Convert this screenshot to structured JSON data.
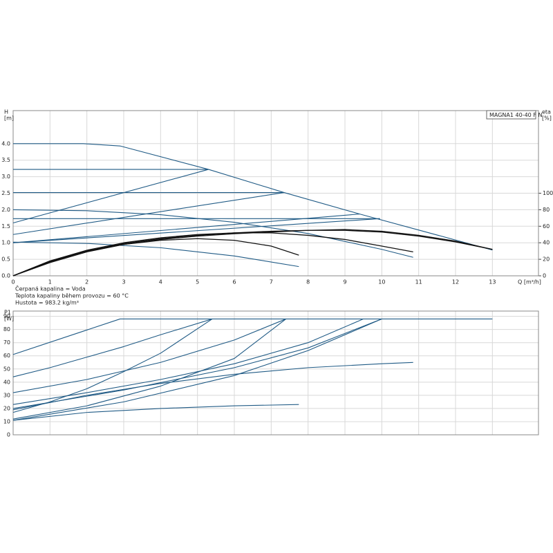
{
  "notes": [
    "Čerpaná kapalina = Voda",
    "Teplota kapaliny během provozu = 60 °C",
    "Hustota = 983.2 kg/m³"
  ],
  "chart_data": [
    {
      "type": "line",
      "annotation": "MAGNA1 40-40 F N",
      "ylabel": [
        "H",
        "[m]"
      ],
      "y2label": [
        "eta",
        "[%]"
      ],
      "xlabel": "Q [m³/h]",
      "grid": true,
      "xlim": [
        0,
        14.25
      ],
      "xticks": [
        0,
        1,
        2,
        3,
        4,
        5,
        6,
        7,
        8,
        9,
        10,
        11,
        12,
        13
      ],
      "ylim": [
        0,
        5
      ],
      "yticks": [
        {
          "value": 0,
          "label": "0.0"
        },
        {
          "value": 0.5,
          "label": "0.5"
        },
        {
          "value": 1,
          "label": "1.0"
        },
        {
          "value": 1.5,
          "label": "1.5"
        },
        {
          "value": 2,
          "label": "2.0"
        },
        {
          "value": 2.5,
          "label": "2.5"
        },
        {
          "value": 3,
          "label": "3.0"
        },
        {
          "value": 3.5,
          "label": "3.5"
        },
        {
          "value": 4,
          "label": "4.0"
        }
      ],
      "y2lim": [
        0,
        200
      ],
      "y2ticks": [
        0,
        20,
        40,
        60,
        80,
        100
      ],
      "series": [
        {
          "color": "#1f5a85",
          "x": [
            0,
            1.9,
            2.9,
            5.3,
            7.35,
            9.4,
            13
          ],
          "values": [
            4,
            4,
            3.93,
            3.22,
            2.52,
            1.87,
            0.78
          ]
        },
        {
          "color": "#1f5a85",
          "x": [
            0,
            5.3
          ],
          "values": [
            3.22,
            3.22
          ]
        },
        {
          "color": "#1f5a85",
          "x": [
            0,
            7.35
          ],
          "values": [
            2.52,
            2.52
          ]
        },
        {
          "color": "#1f5a85",
          "x": [
            0,
            9.95
          ],
          "values": [
            1.73,
            1.73
          ]
        },
        {
          "color": "#1f5a85",
          "x": [
            0,
            5.3
          ],
          "values": [
            1.6,
            3.22
          ]
        },
        {
          "color": "#1f5a85",
          "x": [
            0,
            7.35
          ],
          "values": [
            1.25,
            2.52
          ]
        },
        {
          "color": "#1f5a85",
          "x": [
            0,
            9.4
          ],
          "values": [
            1.0,
            1.87
          ]
        },
        {
          "color": "#1f5a85",
          "x": [
            0,
            9.95
          ],
          "values": [
            1.0,
            1.73
          ]
        },
        {
          "color": "#1f5a85",
          "x": [
            0,
            2,
            4,
            6,
            8,
            10,
            10.85
          ],
          "values": [
            2.0,
            1.97,
            1.85,
            1.62,
            1.28,
            0.8,
            0.56
          ]
        },
        {
          "color": "#1f5a85",
          "x": [
            0,
            2,
            4,
            6,
            7.75
          ],
          "values": [
            1.02,
            0.98,
            0.85,
            0.6,
            0.28
          ]
        },
        {
          "color": "#111111",
          "axis": "y2",
          "x": [
            0,
            1,
            2,
            3,
            4,
            5,
            6,
            7,
            7.75
          ],
          "values": [
            0,
            18,
            30,
            38,
            43,
            45,
            43,
            36,
            25
          ]
        },
        {
          "color": "#111111",
          "axis": "y2",
          "x": [
            0,
            1,
            2,
            3,
            4,
            5,
            6,
            7,
            8,
            9,
            10,
            10.85
          ],
          "values": [
            0,
            18,
            31,
            40,
            46,
            50,
            52,
            52,
            49,
            44,
            36,
            29
          ]
        },
        {
          "color": "#111111",
          "axis": "y2",
          "x": [
            0,
            1,
            2,
            3,
            4,
            5,
            6,
            7,
            8,
            9,
            10,
            11,
            12,
            13
          ],
          "values": [
            0,
            17,
            30,
            39,
            45,
            49,
            52,
            54,
            55,
            55,
            53,
            48,
            41,
            32
          ]
        },
        {
          "color": "#111111",
          "axis": "y2",
          "x": [
            0,
            1,
            2,
            3,
            4,
            5,
            6,
            7,
            8,
            9,
            10,
            11,
            12,
            13
          ],
          "values": [
            0,
            16,
            29,
            38,
            44,
            48,
            51,
            53,
            55,
            56,
            54,
            49,
            42,
            32
          ]
        }
      ]
    },
    {
      "type": "line",
      "ylabel": [
        "P1",
        "[W]"
      ],
      "grid": true,
      "xlim": [
        0,
        14.25
      ],
      "xticks": [
        0,
        1,
        2,
        3,
        4,
        5,
        6,
        7,
        8,
        9,
        10,
        11,
        12,
        13
      ],
      "ylim": [
        0,
        94
      ],
      "yticks": [
        0,
        10,
        20,
        30,
        40,
        50,
        60,
        70,
        80,
        90
      ],
      "series": [
        {
          "color": "#1f5a85",
          "x": [
            0,
            2.9,
            13
          ],
          "values": [
            61,
            88,
            88
          ]
        },
        {
          "color": "#1f5a85",
          "x": [
            0,
            1,
            2,
            3,
            4,
            5.4
          ],
          "values": [
            44,
            51,
            59,
            67,
            76,
            88
          ]
        },
        {
          "color": "#1f5a85",
          "x": [
            0,
            2,
            4,
            6,
            7.4
          ],
          "values": [
            32,
            42,
            55,
            72,
            88
          ]
        },
        {
          "color": "#1f5a85",
          "x": [
            0,
            2,
            4,
            6,
            8,
            9.5
          ],
          "values": [
            23,
            32,
            42,
            54,
            70,
            88
          ]
        },
        {
          "color": "#1f5a85",
          "x": [
            0,
            3,
            6,
            8,
            10
          ],
          "values": [
            20,
            34,
            51,
            66,
            88
          ]
        },
        {
          "color": "#1f5a85",
          "x": [
            0,
            1,
            2,
            3,
            4,
            5.4
          ],
          "values": [
            17,
            25,
            35,
            48,
            62,
            88
          ]
        },
        {
          "color": "#1f5a85",
          "x": [
            0,
            2,
            4,
            6,
            7.4
          ],
          "values": [
            12,
            22,
            37,
            58,
            88
          ]
        },
        {
          "color": "#1f5a85",
          "x": [
            0,
            3,
            6,
            8,
            10
          ],
          "values": [
            11,
            25,
            45,
            64,
            88
          ]
        },
        {
          "color": "#1f5a85",
          "x": [
            0,
            2,
            4,
            6,
            7.75
          ],
          "values": [
            11,
            17,
            20,
            22,
            23
          ]
        },
        {
          "color": "#1f5a85",
          "x": [
            0,
            2,
            4,
            6,
            8,
            10,
            10.85
          ],
          "values": [
            19,
            30,
            39,
            46,
            51,
            54,
            55
          ]
        }
      ]
    }
  ]
}
